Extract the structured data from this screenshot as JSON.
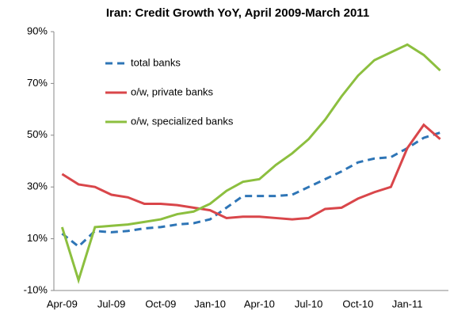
{
  "chart_data": {
    "type": "line",
    "title": "Iran: Credit Growth YoY, April 2009-March 2011",
    "categories": [
      "Apr-09",
      null,
      null,
      "Jul-09",
      null,
      null,
      "Oct-09",
      null,
      null,
      "Jan-10",
      null,
      null,
      "Apr-10",
      null,
      null,
      "Jul-10",
      null,
      null,
      "Oct-10",
      null,
      null,
      "Jan-11",
      null,
      null
    ],
    "series": [
      {
        "name": "total banks",
        "color": "#2e75b6",
        "dashed": true,
        "values": [
          12,
          7,
          13,
          12.5,
          13,
          14,
          14.5,
          15.5,
          16,
          17.5,
          22,
          26.5,
          26.5,
          26.5,
          27,
          30,
          33,
          36,
          39.5,
          41,
          41.5,
          45,
          49,
          51
        ]
      },
      {
        "name": "o/w, private banks",
        "color": "#d9464a",
        "values": [
          35,
          31,
          30,
          27,
          26,
          23.5,
          23.5,
          23,
          22,
          21,
          18,
          18.5,
          18.5,
          18,
          17.5,
          18,
          21.5,
          22,
          25.5,
          28,
          30,
          45,
          54,
          48.5
        ]
      },
      {
        "name": "o/w, specialized banks",
        "color": "#8cbf3f",
        "values": [
          14.5,
          -6,
          14.5,
          15,
          15.5,
          16.5,
          17.5,
          19.5,
          20.5,
          23.5,
          28.5,
          32,
          33,
          38.5,
          43,
          48.5,
          56,
          65,
          73,
          79,
          82,
          85,
          81,
          75
        ]
      }
    ],
    "ylim": [
      -10,
      90
    ],
    "yticks": [
      {
        "value": -10,
        "label": "-10%"
      },
      {
        "value": 10,
        "label": "10%"
      },
      {
        "value": 30,
        "label": "30%"
      },
      {
        "value": 50,
        "label": "50%"
      },
      {
        "value": 70,
        "label": "70%"
      },
      {
        "value": 90,
        "label": "90%"
      }
    ],
    "grid": false
  }
}
